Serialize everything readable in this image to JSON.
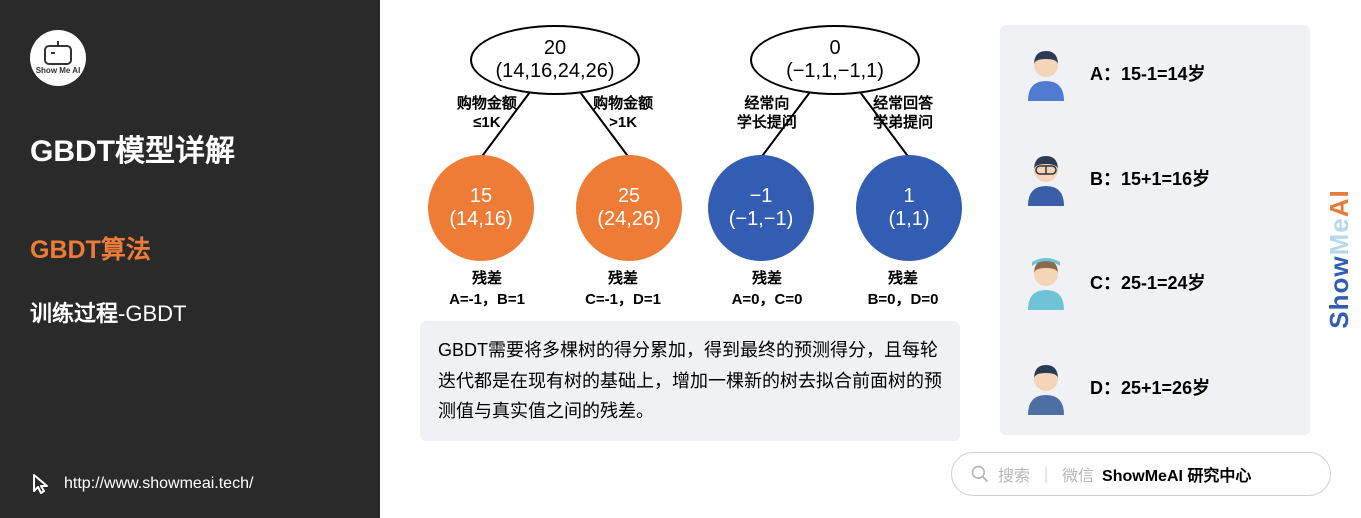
{
  "sidebar": {
    "logo_text": "Show Me AI",
    "title": "GBDT模型详解",
    "subtitle1": "GBDT算法",
    "subtitle2_bold": "训练过程",
    "subtitle2_rest": "-GBDT",
    "url": "http://www.showmeai.tech/"
  },
  "colors": {
    "sidebar_bg": "#2a2a2a",
    "accent": "#ee7b36",
    "leaf_orange": "#ee7b36",
    "leaf_blue": "#335db2",
    "panel_bg": "#f0f1f4",
    "text": "#222222"
  },
  "trees": [
    {
      "root_top": "20",
      "root_bottom": "(14,16,24,26)",
      "edge_left_l1": "购物金额",
      "edge_left_l2": "≤1K",
      "edge_right_l1": "购物金额",
      "edge_right_l2": ">1K",
      "leaf_color": "#ee7b36",
      "leaf_left_top": "15",
      "leaf_left_bottom": "(14,16)",
      "leaf_right_top": "25",
      "leaf_right_bottom": "(24,26)",
      "res_l_l1": "残差",
      "res_l_l2": "A=-1，B=1",
      "res_r_l1": "残差",
      "res_r_l2": "C=-1，D=1"
    },
    {
      "root_top": "0",
      "root_bottom": "(−1,1,−1,1)",
      "edge_left_l1": "经常向",
      "edge_left_l2": "学长提问",
      "edge_right_l1": "经常回答",
      "edge_right_l2": "学弟提问",
      "leaf_color": "#335db2",
      "leaf_left_top": "−1",
      "leaf_left_bottom": "(−1,−1)",
      "leaf_right_top": "1",
      "leaf_right_bottom": "(1,1)",
      "res_l_l1": "残差",
      "res_l_l2": "A=0，C=0",
      "res_r_l1": "残差",
      "res_r_l2": "B=0，D=0"
    }
  ],
  "note": "GBDT需要将多棵树的得分累加，得到最终的预测得分，且每轮迭代都是在现有树的基础上，增加一棵新的树去拟合前面树的预测值与真实值之间的残差。",
  "persons": [
    {
      "label": "A：15-1=14岁",
      "hair": "#2b3a55",
      "shirt": "#4f7bd1"
    },
    {
      "label": "B：15+1=16岁",
      "hair": "#2b3a55",
      "shirt": "#3a5fa8"
    },
    {
      "label": "C：25-1=24岁",
      "hair": "#8a6b4a",
      "shirt": "#6ec4d6"
    },
    {
      "label": "D：25+1=26岁",
      "hair": "#2b3a55",
      "shirt": "#4e6fa3"
    }
  ],
  "watermark": {
    "part1": "Show",
    "part2": "Me",
    "part3": "AI"
  },
  "search": {
    "hint1": "搜索",
    "sep": "｜",
    "hint2": "微信",
    "bold": "ShowMeAI 研究中心"
  }
}
